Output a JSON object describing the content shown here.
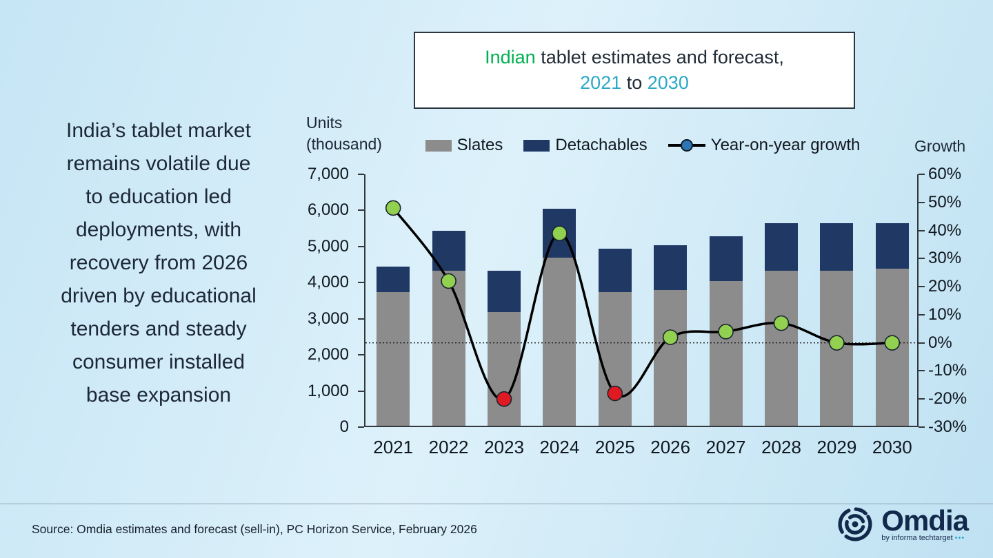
{
  "colors": {
    "green": "#00B050",
    "teal": "#2BA8C8",
    "dark": "#1A2430",
    "navy": "#13294B",
    "slates_gray": "#8C8C8C",
    "detachables_navy": "#1F3864",
    "growth_line": "#000000",
    "marker_green": "#92D050",
    "marker_red": "#E01A22",
    "legend_marker_blue": "#2E75B6"
  },
  "title": {
    "line1_accent": "Indian",
    "line1_rest": " tablet estimates and forecast,",
    "year_start": "2021",
    "connector": " to ",
    "year_end": "2030",
    "full": "Indian tablet estimates and forecast, 2021 to 2030"
  },
  "left_text": "India’s tablet market\nremains volatile due\nto education led\ndeployments, with\nrecovery from 2026\ndriven by educational\ntenders and steady\nconsumer installed\nbase expansion",
  "axis": {
    "left_label": "Units\n(thousand)",
    "right_label": "Growth"
  },
  "legend": {
    "items": [
      {
        "label": "Slates",
        "color": "#8C8C8C"
      },
      {
        "label": "Detachables",
        "color": "#1F3864"
      },
      {
        "label": "Year-on-year growth",
        "line_color": "#000000",
        "marker_color": "#2E75B6"
      }
    ]
  },
  "chart_data": {
    "type": "combo",
    "title": "Indian tablet estimates and forecast, 2021 to 2030",
    "categories": [
      "2021",
      "2022",
      "2023",
      "2024",
      "2025",
      "2026",
      "2027",
      "2028",
      "2029",
      "2030"
    ],
    "series": [
      {
        "name": "Slates",
        "type": "bar",
        "stack": "units",
        "axis": "left",
        "color": "#8C8C8C",
        "values": [
          3700,
          4300,
          3150,
          4650,
          3700,
          3750,
          4000,
          4300,
          4300,
          4350
        ]
      },
      {
        "name": "Detachables",
        "type": "bar",
        "stack": "units",
        "axis": "left",
        "color": "#1F3864",
        "values": [
          700,
          1100,
          1150,
          1350,
          1200,
          1250,
          1250,
          1300,
          1300,
          1250
        ]
      },
      {
        "name": "Year-on-year growth",
        "type": "line",
        "axis": "right",
        "color": "#000000",
        "unit": "%",
        "values": [
          48,
          22,
          -20,
          39,
          -18,
          2,
          4,
          7,
          0,
          0
        ]
      }
    ],
    "marker_colors": [
      "#92D050",
      "#92D050",
      "#E01A22",
      "#92D050",
      "#E01A22",
      "#92D050",
      "#92D050",
      "#92D050",
      "#92D050",
      "#92D050"
    ],
    "left_axis": {
      "min": 0,
      "max": 7000,
      "step": 1000,
      "label": "Units (thousand)"
    },
    "right_axis": {
      "min": -30,
      "max": 60,
      "step": 10,
      "label": "Growth",
      "unit": "%"
    },
    "left_tick_labels": [
      "0",
      "1,000",
      "2,000",
      "3,000",
      "4,000",
      "5,000",
      "6,000",
      "7,000"
    ],
    "right_tick_labels": [
      "-30%",
      "-20%",
      "-10%",
      "0%",
      "10%",
      "20%",
      "30%",
      "40%",
      "50%",
      "60%"
    ],
    "zero_reference_line": true,
    "legend_position": "top",
    "grid": false
  },
  "source": "Source: Omdia estimates and forecast (sell-in), PC Horizon Service, February 2026",
  "logo": {
    "name": "Omdia",
    "tagline": "by informa techtarget",
    "dots": "•••"
  }
}
